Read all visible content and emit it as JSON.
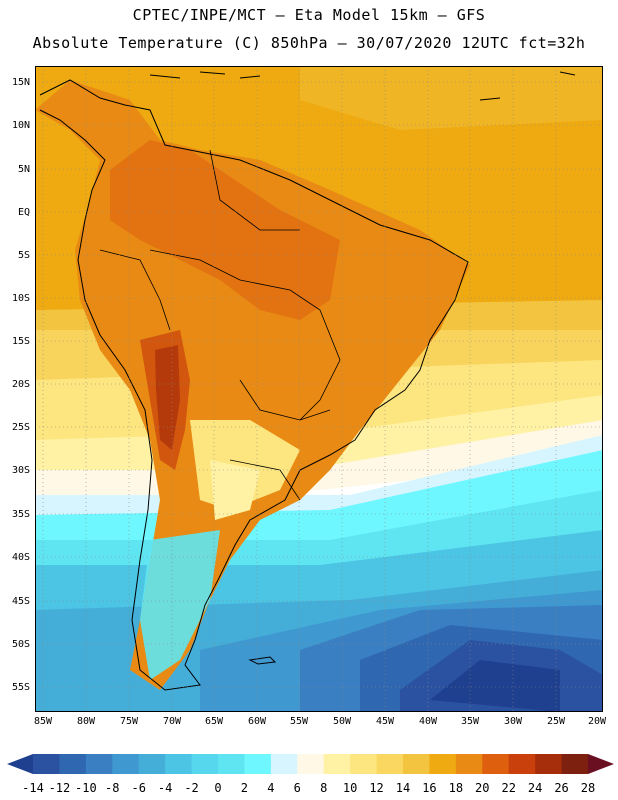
{
  "header": {
    "line1": "CPTEC/INPE/MCT –  Eta Model 15km – GFS",
    "line2": "Absolute Temperature (C) 850hPa – 30/07/2020 12UTC fct=32h"
  },
  "map": {
    "region": "South America",
    "lat_labels": [
      "15N",
      "10N",
      "5N",
      "EQ",
      "5S",
      "10S",
      "15S",
      "20S",
      "25S",
      "30S",
      "35S",
      "40S",
      "45S",
      "50S",
      "55S"
    ],
    "lon_labels": [
      "85W",
      "80W",
      "75W",
      "70W",
      "65W",
      "60W",
      "55W",
      "50W",
      "45W",
      "40W",
      "35W",
      "30W",
      "25W",
      "20W"
    ]
  },
  "legend": {
    "units": "C",
    "labels": [
      "-14",
      "-12",
      "-10",
      "-8",
      "-6",
      "-4",
      "-2",
      "0",
      "2",
      "4",
      "6",
      "8",
      "10",
      "12",
      "14",
      "16",
      "18",
      "20",
      "22",
      "24",
      "26",
      "28"
    ],
    "colors": [
      "#1f3f8f",
      "#2a52a0",
      "#2f67b0",
      "#3a7fc2",
      "#3f98cf",
      "#44aed9",
      "#4cc4e4",
      "#56d7ee",
      "#5fe5f2",
      "#6ff7ff",
      "#d6f5ff",
      "#fff8e6",
      "#fff2a5",
      "#fde680",
      "#f9d761",
      "#f2c440",
      "#eeaa10",
      "#e88a13",
      "#de5f0e",
      "#c9400c",
      "#a72e0b",
      "#7e2010",
      "#6a0f22"
    ]
  }
}
